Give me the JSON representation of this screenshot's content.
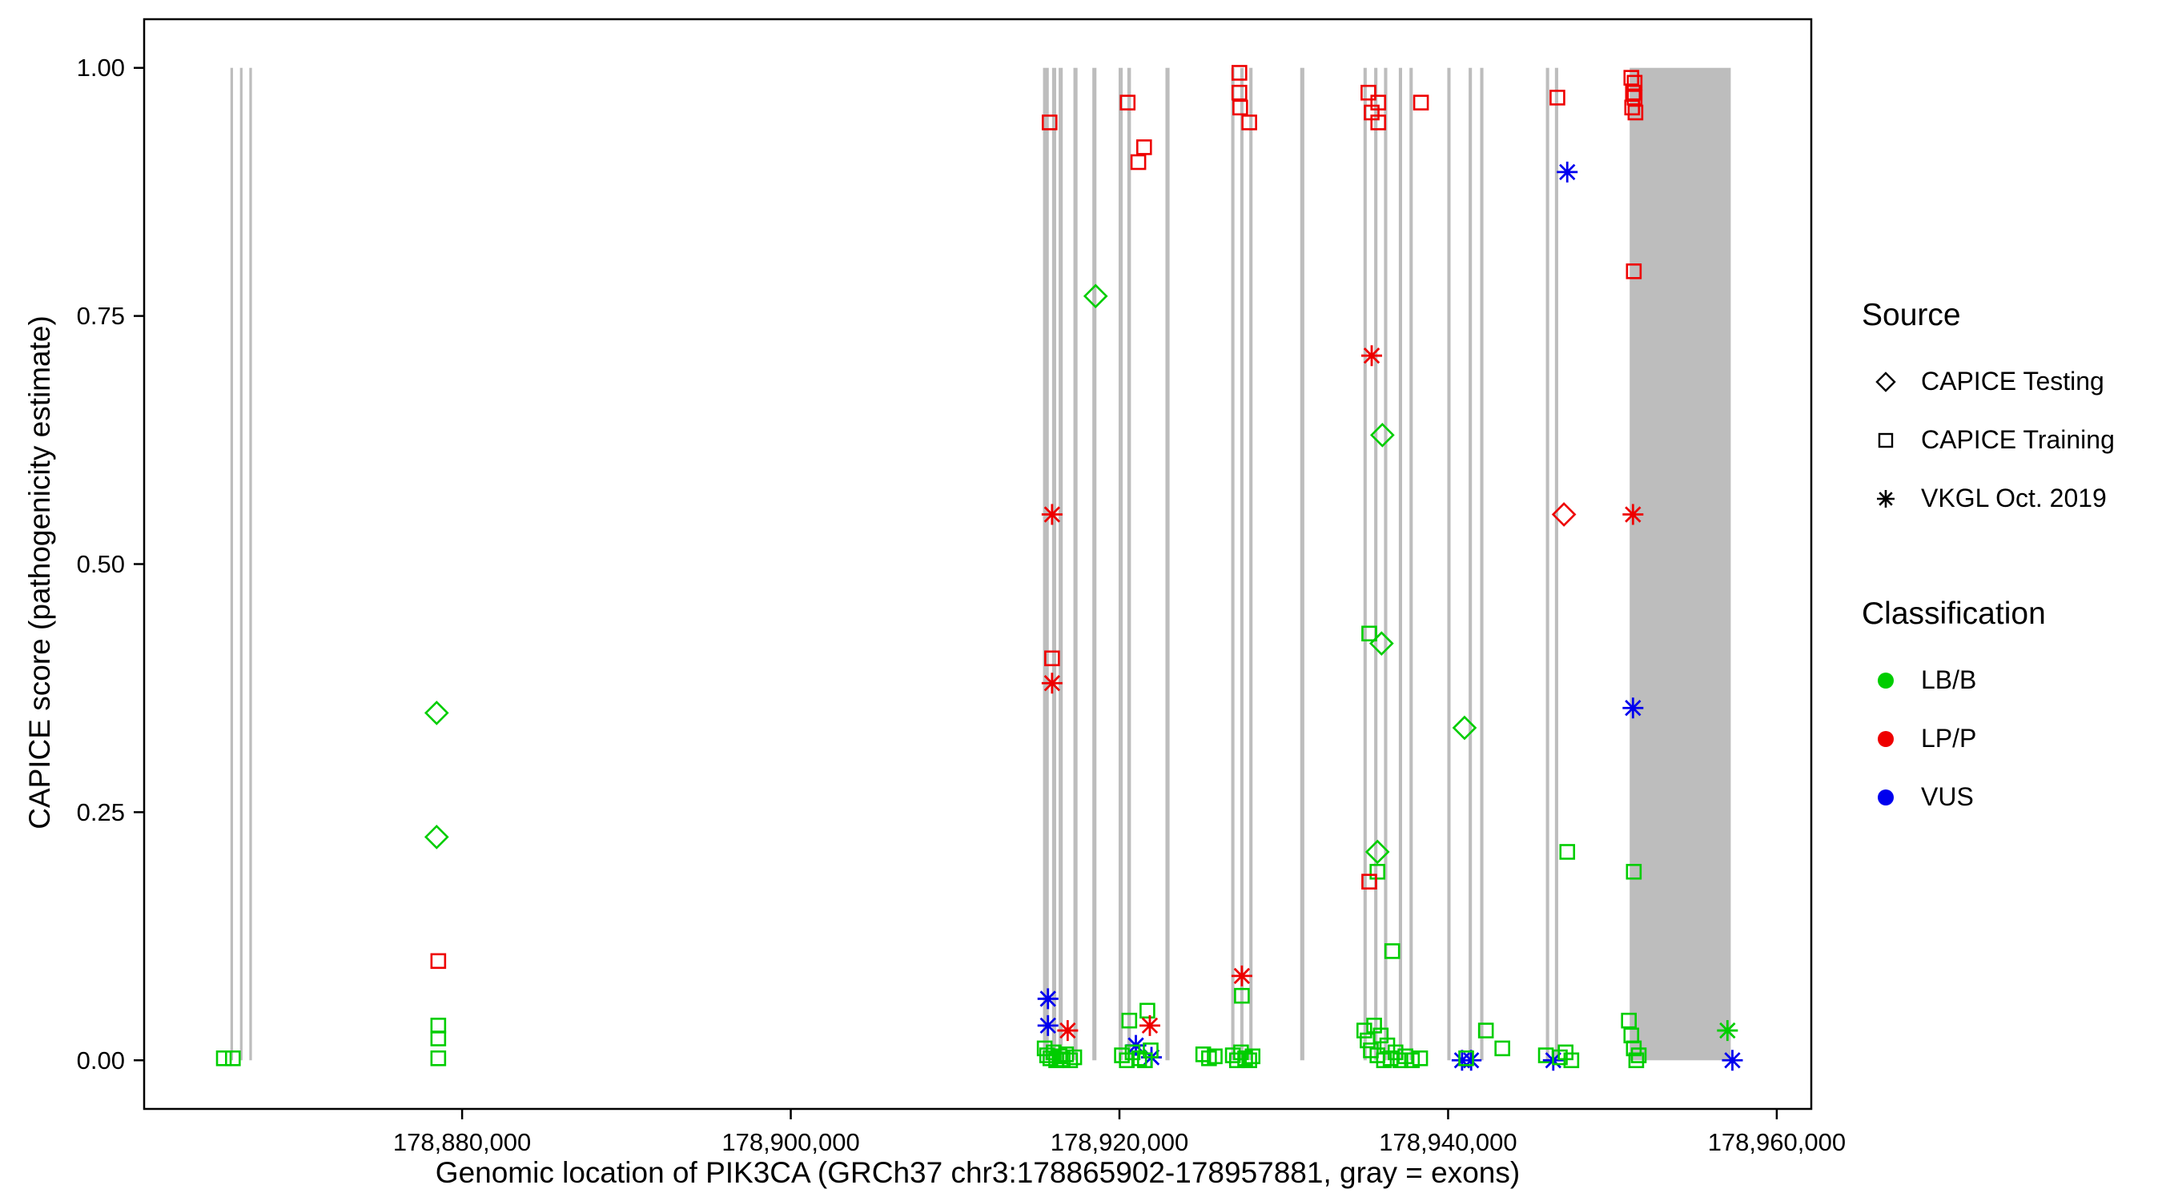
{
  "chart_data": {
    "type": "scatter",
    "title": "",
    "xlabel": "Genomic location of PIK3CA (GRCh37 chr3:178865902-178957881, gray = exons)",
    "ylabel": "CAPICE score (pathogenicity estimate)",
    "xlim": [
      178860650,
      178962100
    ],
    "ylim": [
      -0.049,
      1.049
    ],
    "grid": false,
    "x_ticks": [
      {
        "value": 178880000,
        "label": "178,880,000"
      },
      {
        "value": 178900000,
        "label": "178,900,000"
      },
      {
        "value": 178920000,
        "label": "178,920,000"
      },
      {
        "value": 178940000,
        "label": "178,940,000"
      },
      {
        "value": 178960000,
        "label": "178,960,000"
      }
    ],
    "y_ticks": [
      {
        "value": 0.0,
        "label": "0.00"
      },
      {
        "value": 0.25,
        "label": "0.25"
      },
      {
        "value": 0.5,
        "label": "0.50"
      },
      {
        "value": 0.75,
        "label": "0.75"
      },
      {
        "value": 1.0,
        "label": "1.00"
      }
    ],
    "exon_color": "#bdbdbd",
    "panel_border_color": "#000000",
    "classification_colors": {
      "LB/B": "#00CD00",
      "LP/P": "#EE0000",
      "VUS": "#0000EE"
    },
    "source_shapes": {
      "CAPICE Testing": "diamond",
      "CAPICE Training": "square",
      "VKGL Oct. 2019": "asterisk"
    },
    "exons": [
      [
        178865900,
        178866060
      ],
      [
        178866480,
        178866640
      ],
      [
        178867050,
        178867210
      ],
      [
        178915350,
        178915700
      ],
      [
        178915900,
        178916150
      ],
      [
        178916300,
        178916550
      ],
      [
        178917200,
        178917450
      ],
      [
        178918350,
        178918600
      ],
      [
        178919950,
        178920200
      ],
      [
        178920480,
        178920700
      ],
      [
        178922800,
        178923050
      ],
      [
        178926800,
        178927000
      ],
      [
        178927350,
        178927550
      ],
      [
        178927900,
        178928100
      ],
      [
        178931000,
        178931250
      ],
      [
        178934850,
        178935050
      ],
      [
        178935500,
        178935700
      ],
      [
        178936100,
        178936300
      ],
      [
        178937000,
        178937200
      ],
      [
        178937650,
        178937850
      ],
      [
        178939950,
        178940150
      ],
      [
        178941250,
        178941450
      ],
      [
        178941950,
        178942150
      ],
      [
        178945950,
        178946150
      ],
      [
        178946500,
        178946700
      ],
      [
        178951050,
        178957200
      ]
    ],
    "points": [
      {
        "x": 178865500,
        "y": 0.002,
        "source": "CAPICE Training",
        "classification": "LB/B"
      },
      {
        "x": 178866050,
        "y": 0.002,
        "source": "CAPICE Training",
        "classification": "LB/B"
      },
      {
        "x": 178878450,
        "y": 0.35,
        "source": "CAPICE Testing",
        "classification": "LB/B"
      },
      {
        "x": 178878450,
        "y": 0.225,
        "source": "CAPICE Testing",
        "classification": "LB/B"
      },
      {
        "x": 178878550,
        "y": 0.1,
        "source": "CAPICE Training",
        "classification": "LP/P"
      },
      {
        "x": 178878550,
        "y": 0.035,
        "source": "CAPICE Training",
        "classification": "LB/B"
      },
      {
        "x": 178878550,
        "y": 0.022,
        "source": "CAPICE Training",
        "classification": "LB/B"
      },
      {
        "x": 178878550,
        "y": 0.002,
        "source": "CAPICE Training",
        "classification": "LB/B"
      },
      {
        "x": 178915750,
        "y": 0.945,
        "source": "CAPICE Training",
        "classification": "LP/P"
      },
      {
        "x": 178915900,
        "y": 0.55,
        "source": "VKGL Oct. 2019",
        "classification": "LP/P"
      },
      {
        "x": 178915900,
        "y": 0.405,
        "source": "CAPICE Training",
        "classification": "LP/P"
      },
      {
        "x": 178915900,
        "y": 0.38,
        "source": "VKGL Oct. 2019",
        "classification": "LP/P"
      },
      {
        "x": 178915650,
        "y": 0.062,
        "source": "VKGL Oct. 2019",
        "classification": "VUS"
      },
      {
        "x": 178915650,
        "y": 0.035,
        "source": "VKGL Oct. 2019",
        "classification": "VUS"
      },
      {
        "x": 178916850,
        "y": 0.03,
        "source": "VKGL Oct. 2019",
        "classification": "LP/P"
      },
      {
        "x": 178915450,
        "y": 0.012,
        "source": "CAPICE Training",
        "classification": "LB/B"
      },
      {
        "x": 178915600,
        "y": 0.005,
        "source": "CAPICE Training",
        "classification": "LB/B"
      },
      {
        "x": 178915800,
        "y": 0.002,
        "source": "CAPICE Training",
        "classification": "LB/B"
      },
      {
        "x": 178916000,
        "y": 0.008,
        "source": "CAPICE Training",
        "classification": "LB/B"
      },
      {
        "x": 178916150,
        "y": 0.0,
        "source": "CAPICE Training",
        "classification": "LB/B"
      },
      {
        "x": 178916350,
        "y": 0.004,
        "source": "CAPICE Training",
        "classification": "LB/B"
      },
      {
        "x": 178916550,
        "y": 0.001,
        "source": "CAPICE Training",
        "classification": "LB/B"
      },
      {
        "x": 178916750,
        "y": 0.006,
        "source": "CAPICE Training",
        "classification": "LB/B"
      },
      {
        "x": 178917000,
        "y": 0.0,
        "source": "CAPICE Training",
        "classification": "LB/B"
      },
      {
        "x": 178917250,
        "y": 0.003,
        "source": "CAPICE Training",
        "classification": "LB/B"
      },
      {
        "x": 178918550,
        "y": 0.77,
        "source": "CAPICE Testing",
        "classification": "LB/B"
      },
      {
        "x": 178920500,
        "y": 0.965,
        "source": "CAPICE Training",
        "classification": "LP/P"
      },
      {
        "x": 178921500,
        "y": 0.92,
        "source": "CAPICE Training",
        "classification": "LP/P"
      },
      {
        "x": 178921150,
        "y": 0.905,
        "source": "CAPICE Training",
        "classification": "LP/P"
      },
      {
        "x": 178921700,
        "y": 0.05,
        "source": "CAPICE Training",
        "classification": "LB/B"
      },
      {
        "x": 178920600,
        "y": 0.04,
        "source": "CAPICE Training",
        "classification": "LB/B"
      },
      {
        "x": 178921000,
        "y": 0.015,
        "source": "VKGL Oct. 2019",
        "classification": "VUS"
      },
      {
        "x": 178921850,
        "y": 0.035,
        "source": "VKGL Oct. 2019",
        "classification": "LP/P"
      },
      {
        "x": 178921950,
        "y": 0.003,
        "source": "VKGL Oct. 2019",
        "classification": "VUS"
      },
      {
        "x": 178920150,
        "y": 0.005,
        "source": "CAPICE Training",
        "classification": "LB/B"
      },
      {
        "x": 178920450,
        "y": 0.0,
        "source": "CAPICE Training",
        "classification": "LB/B"
      },
      {
        "x": 178920800,
        "y": 0.008,
        "source": "CAPICE Training",
        "classification": "LB/B"
      },
      {
        "x": 178921200,
        "y": 0.002,
        "source": "CAPICE Training",
        "classification": "LB/B"
      },
      {
        "x": 178921550,
        "y": 0.0,
        "source": "CAPICE Training",
        "classification": "LB/B"
      },
      {
        "x": 178921900,
        "y": 0.01,
        "source": "CAPICE Training",
        "classification": "LB/B"
      },
      {
        "x": 178925100,
        "y": 0.006,
        "source": "CAPICE Training",
        "classification": "LB/B"
      },
      {
        "x": 178925450,
        "y": 0.002,
        "source": "CAPICE Training",
        "classification": "LB/B"
      },
      {
        "x": 178925800,
        "y": 0.004,
        "source": "CAPICE Training",
        "classification": "LB/B"
      },
      {
        "x": 178927300,
        "y": 0.995,
        "source": "CAPICE Training",
        "classification": "LP/P"
      },
      {
        "x": 178927300,
        "y": 0.975,
        "source": "CAPICE Training",
        "classification": "LP/P"
      },
      {
        "x": 178927350,
        "y": 0.96,
        "source": "CAPICE Training",
        "classification": "LP/P"
      },
      {
        "x": 178927900,
        "y": 0.945,
        "source": "CAPICE Training",
        "classification": "LP/P"
      },
      {
        "x": 178927450,
        "y": 0.085,
        "source": "VKGL Oct. 2019",
        "classification": "LP/P"
      },
      {
        "x": 178927450,
        "y": 0.065,
        "source": "CAPICE Training",
        "classification": "LB/B"
      },
      {
        "x": 178926900,
        "y": 0.005,
        "source": "CAPICE Training",
        "classification": "LB/B"
      },
      {
        "x": 178927150,
        "y": 0.0,
        "source": "CAPICE Training",
        "classification": "LB/B"
      },
      {
        "x": 178927400,
        "y": 0.008,
        "source": "CAPICE Training",
        "classification": "LB/B"
      },
      {
        "x": 178927650,
        "y": 0.002,
        "source": "CAPICE Training",
        "classification": "LB/B"
      },
      {
        "x": 178927900,
        "y": 0.0,
        "source": "CAPICE Training",
        "classification": "LB/B"
      },
      {
        "x": 178928100,
        "y": 0.004,
        "source": "CAPICE Training",
        "classification": "LB/B"
      },
      {
        "x": 178935150,
        "y": 0.975,
        "source": "CAPICE Training",
        "classification": "LP/P"
      },
      {
        "x": 178935750,
        "y": 0.965,
        "source": "CAPICE Training",
        "classification": "LP/P"
      },
      {
        "x": 178935350,
        "y": 0.955,
        "source": "CAPICE Training",
        "classification": "LP/P"
      },
      {
        "x": 178935750,
        "y": 0.945,
        "source": "CAPICE Training",
        "classification": "LP/P"
      },
      {
        "x": 178938350,
        "y": 0.965,
        "source": "CAPICE Training",
        "classification": "LP/P"
      },
      {
        "x": 178935350,
        "y": 0.71,
        "source": "VKGL Oct. 2019",
        "classification": "LP/P"
      },
      {
        "x": 178936000,
        "y": 0.63,
        "source": "CAPICE Testing",
        "classification": "LB/B"
      },
      {
        "x": 178935200,
        "y": 0.43,
        "source": "CAPICE Training",
        "classification": "LB/B"
      },
      {
        "x": 178935950,
        "y": 0.42,
        "source": "CAPICE Testing",
        "classification": "LB/B"
      },
      {
        "x": 178935700,
        "y": 0.21,
        "source": "CAPICE Testing",
        "classification": "LB/B"
      },
      {
        "x": 178935700,
        "y": 0.19,
        "source": "CAPICE Training",
        "classification": "LB/B"
      },
      {
        "x": 178935200,
        "y": 0.18,
        "source": "CAPICE Training",
        "classification": "LP/P"
      },
      {
        "x": 178936600,
        "y": 0.11,
        "source": "CAPICE Training",
        "classification": "LB/B"
      },
      {
        "x": 178934900,
        "y": 0.03,
        "source": "CAPICE Training",
        "classification": "LB/B"
      },
      {
        "x": 178935100,
        "y": 0.02,
        "source": "CAPICE Training",
        "classification": "LB/B"
      },
      {
        "x": 178935300,
        "y": 0.01,
        "source": "CAPICE Training",
        "classification": "LB/B"
      },
      {
        "x": 178935500,
        "y": 0.035,
        "source": "CAPICE Training",
        "classification": "LB/B"
      },
      {
        "x": 178935700,
        "y": 0.005,
        "source": "CAPICE Training",
        "classification": "LB/B"
      },
      {
        "x": 178935900,
        "y": 0.025,
        "source": "CAPICE Training",
        "classification": "LB/B"
      },
      {
        "x": 178936100,
        "y": 0.0,
        "source": "CAPICE Training",
        "classification": "LB/B"
      },
      {
        "x": 178936300,
        "y": 0.015,
        "source": "CAPICE Training",
        "classification": "LB/B"
      },
      {
        "x": 178936500,
        "y": 0.002,
        "source": "CAPICE Training",
        "classification": "LB/B"
      },
      {
        "x": 178936800,
        "y": 0.008,
        "source": "CAPICE Training",
        "classification": "LB/B"
      },
      {
        "x": 178937100,
        "y": 0.0,
        "source": "CAPICE Training",
        "classification": "LB/B"
      },
      {
        "x": 178937400,
        "y": 0.004,
        "source": "CAPICE Training",
        "classification": "LB/B"
      },
      {
        "x": 178937800,
        "y": 0.0,
        "source": "CAPICE Training",
        "classification": "LB/B"
      },
      {
        "x": 178938300,
        "y": 0.002,
        "source": "CAPICE Training",
        "classification": "LB/B"
      },
      {
        "x": 178940850,
        "y": 0.0,
        "source": "VKGL Oct. 2019",
        "classification": "VUS"
      },
      {
        "x": 178941400,
        "y": 0.0,
        "source": "VKGL Oct. 2019",
        "classification": "VUS"
      },
      {
        "x": 178941100,
        "y": 0.002,
        "source": "CAPICE Training",
        "classification": "LB/B"
      },
      {
        "x": 178942300,
        "y": 0.03,
        "source": "CAPICE Training",
        "classification": "LB/B"
      },
      {
        "x": 178943300,
        "y": 0.012,
        "source": "CAPICE Training",
        "classification": "LB/B"
      },
      {
        "x": 178941000,
        "y": 0.335,
        "source": "CAPICE Testing",
        "classification": "LB/B"
      },
      {
        "x": 178946650,
        "y": 0.97,
        "source": "CAPICE Training",
        "classification": "LP/P"
      },
      {
        "x": 178947250,
        "y": 0.895,
        "source": "VKGL Oct. 2019",
        "classification": "VUS"
      },
      {
        "x": 178947050,
        "y": 0.55,
        "source": "CAPICE Testing",
        "classification": "LP/P"
      },
      {
        "x": 178947250,
        "y": 0.21,
        "source": "CAPICE Training",
        "classification": "LB/B"
      },
      {
        "x": 178945950,
        "y": 0.005,
        "source": "CAPICE Training",
        "classification": "LB/B"
      },
      {
        "x": 178946400,
        "y": 0.0,
        "source": "VKGL Oct. 2019",
        "classification": "VUS"
      },
      {
        "x": 178946800,
        "y": 0.003,
        "source": "CAPICE Training",
        "classification": "LB/B"
      },
      {
        "x": 178947150,
        "y": 0.008,
        "source": "CAPICE Training",
        "classification": "LB/B"
      },
      {
        "x": 178947500,
        "y": 0.0,
        "source": "CAPICE Training",
        "classification": "LB/B"
      },
      {
        "x": 178951150,
        "y": 0.99,
        "source": "CAPICE Training",
        "classification": "LP/P"
      },
      {
        "x": 178951350,
        "y": 0.985,
        "source": "CAPICE Training",
        "classification": "LP/P"
      },
      {
        "x": 178951250,
        "y": 0.975,
        "source": "CAPICE Training",
        "classification": "LP/P"
      },
      {
        "x": 178951350,
        "y": 0.97,
        "source": "CAPICE Training",
        "classification": "LP/P"
      },
      {
        "x": 178951200,
        "y": 0.96,
        "source": "CAPICE Training",
        "classification": "LP/P"
      },
      {
        "x": 178951400,
        "y": 0.955,
        "source": "CAPICE Training",
        "classification": "LP/P"
      },
      {
        "x": 178951300,
        "y": 0.795,
        "source": "CAPICE Training",
        "classification": "LP/P"
      },
      {
        "x": 178951250,
        "y": 0.55,
        "source": "VKGL Oct. 2019",
        "classification": "LP/P"
      },
      {
        "x": 178951250,
        "y": 0.355,
        "source": "VKGL Oct. 2019",
        "classification": "VUS"
      },
      {
        "x": 178951300,
        "y": 0.19,
        "source": "CAPICE Training",
        "classification": "LB/B"
      },
      {
        "x": 178951000,
        "y": 0.04,
        "source": "CAPICE Training",
        "classification": "LB/B"
      },
      {
        "x": 178951150,
        "y": 0.025,
        "source": "CAPICE Training",
        "classification": "LB/B"
      },
      {
        "x": 178951300,
        "y": 0.012,
        "source": "CAPICE Training",
        "classification": "LB/B"
      },
      {
        "x": 178951450,
        "y": 0.0,
        "source": "CAPICE Training",
        "classification": "LB/B"
      },
      {
        "x": 178951600,
        "y": 0.005,
        "source": "CAPICE Training",
        "classification": "LB/B"
      },
      {
        "x": 178957000,
        "y": 0.03,
        "source": "VKGL Oct. 2019",
        "classification": "LB/B"
      },
      {
        "x": 178957300,
        "y": 0.0,
        "source": "VKGL Oct. 2019",
        "classification": "VUS"
      }
    ]
  },
  "legend": {
    "source": {
      "title": "Source",
      "items": [
        {
          "label": "CAPICE Testing",
          "shape": "diamond"
        },
        {
          "label": "CAPICE Training",
          "shape": "square"
        },
        {
          "label": "VKGL Oct. 2019",
          "shape": "asterisk"
        }
      ]
    },
    "classification": {
      "title": "Classification",
      "items": [
        {
          "label": "LB/B",
          "color": "#00CD00"
        },
        {
          "label": "LP/P",
          "color": "#EE0000"
        },
        {
          "label": "VUS",
          "color": "#0000EE"
        }
      ]
    }
  }
}
